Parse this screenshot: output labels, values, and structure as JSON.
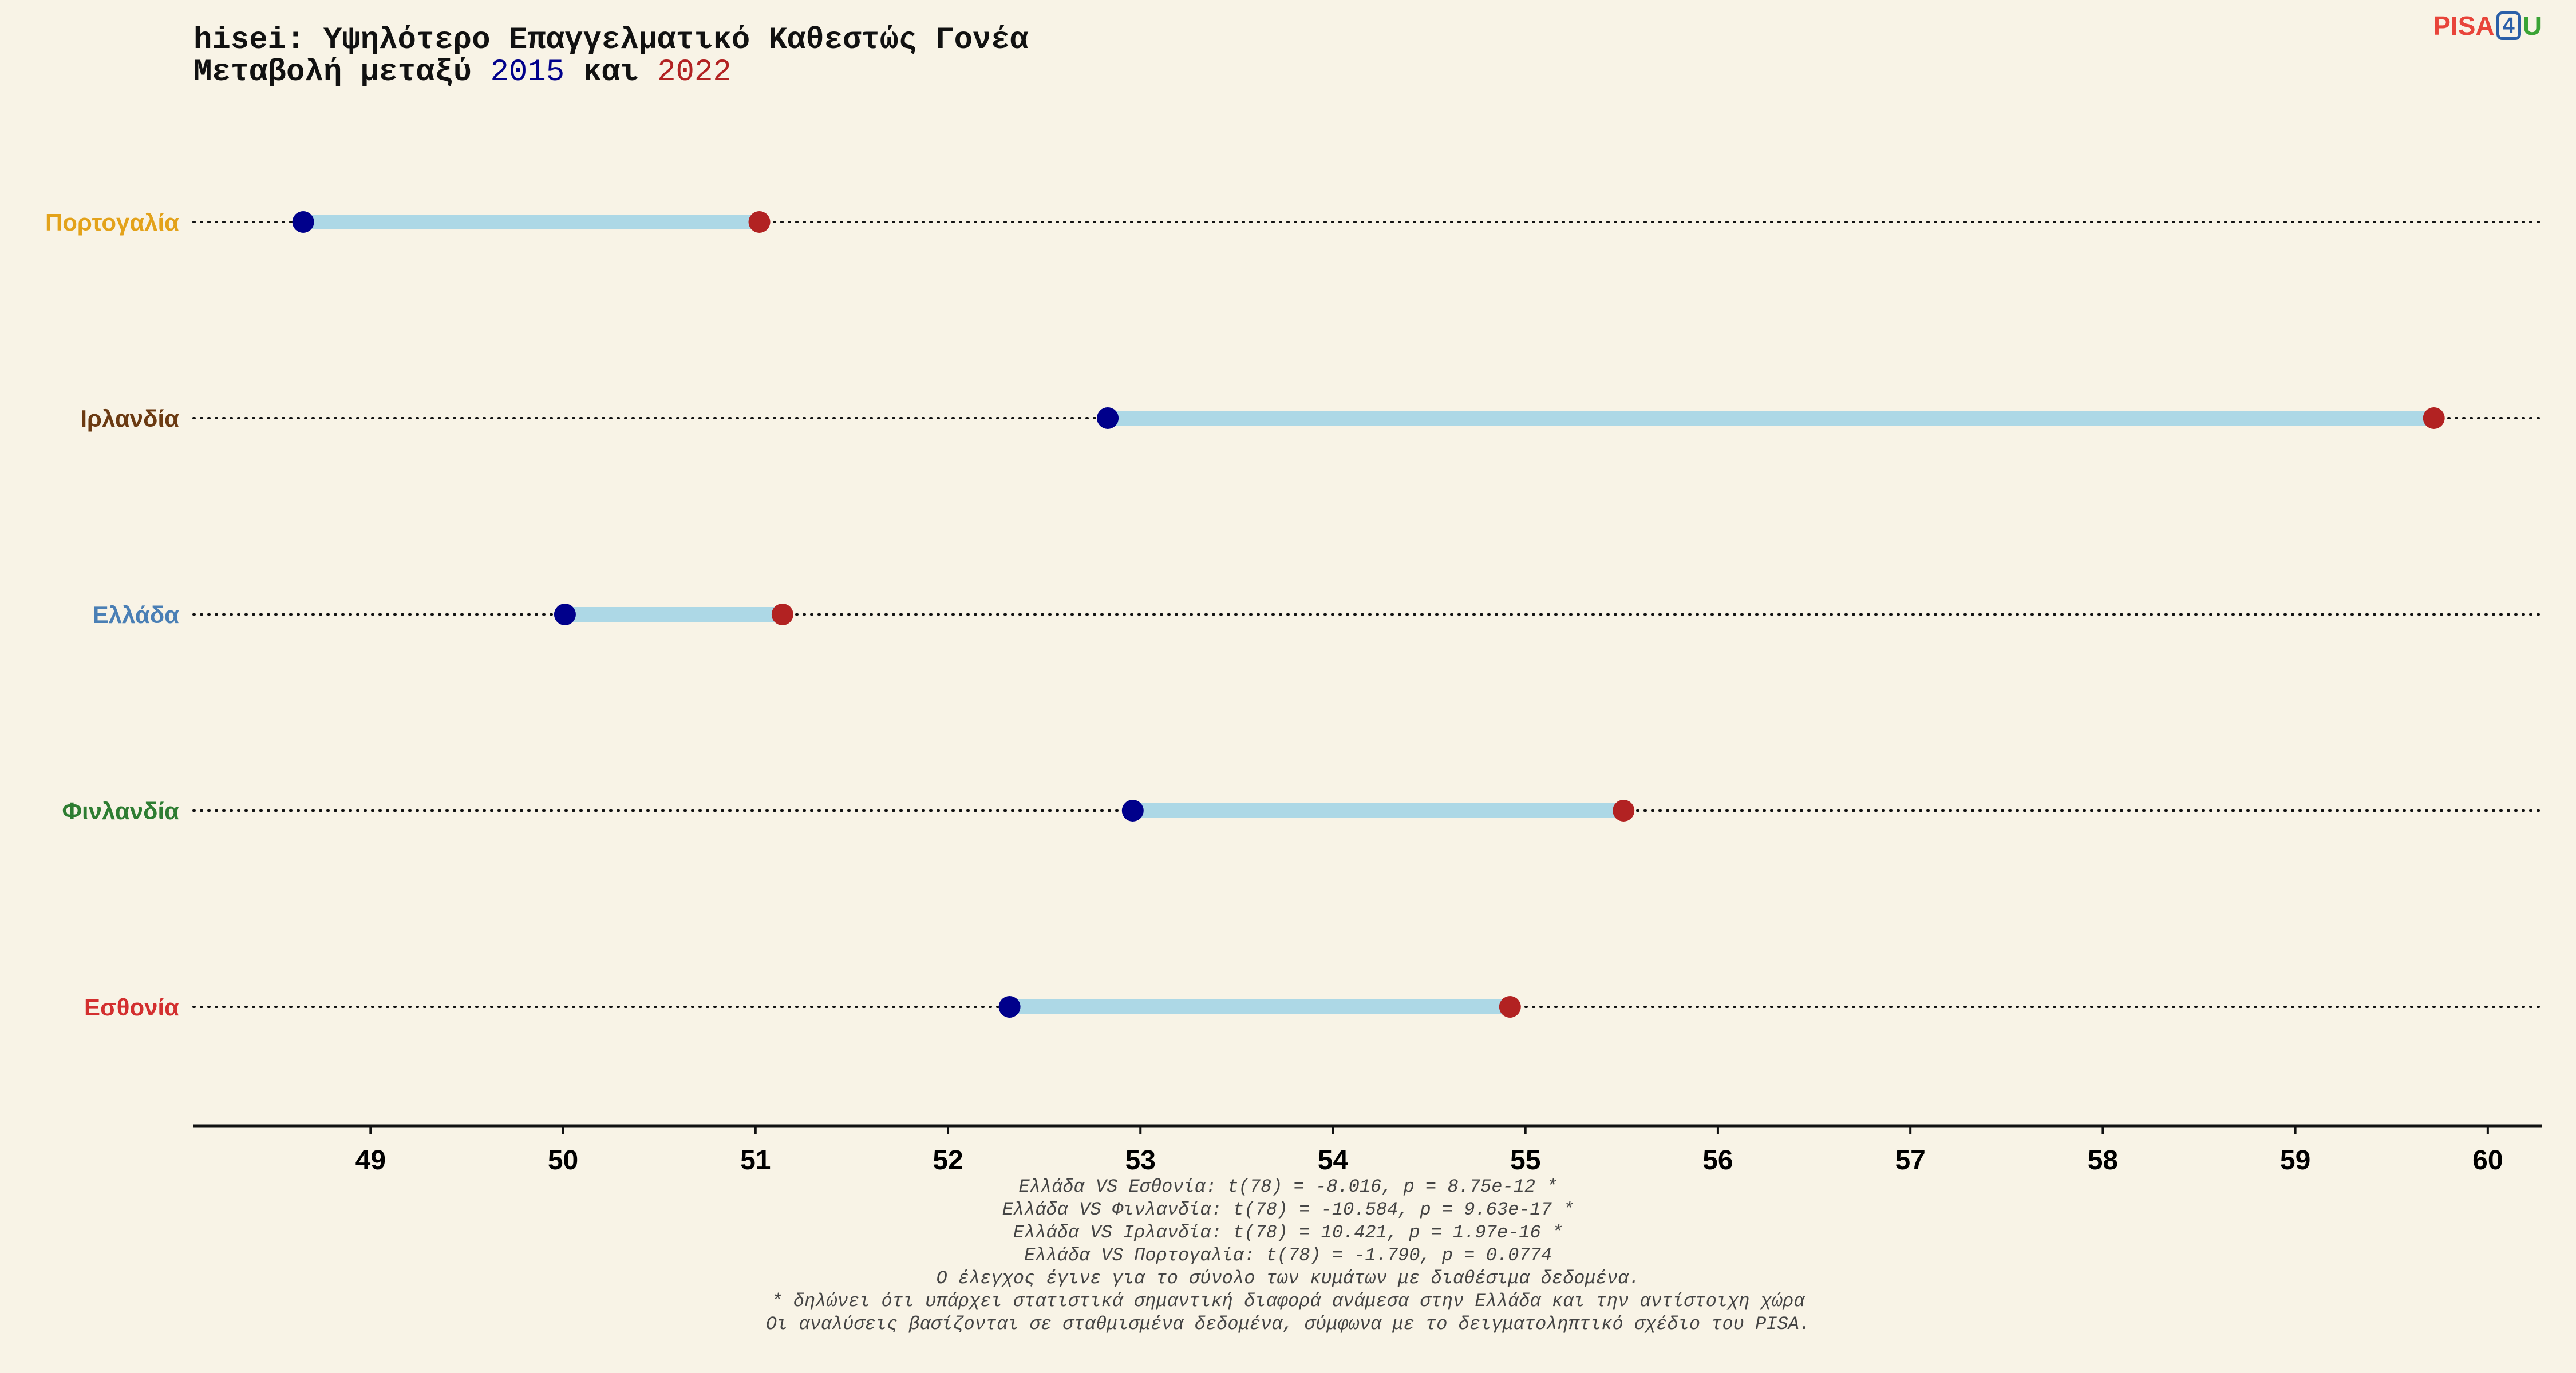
{
  "title": {
    "line1": "hisei: Υψηλότερο Επαγγελματικό Καθεστώς Γονέα",
    "line2_prefix": "Μεταβολή μεταξύ ",
    "year_a": "2015",
    "line2_middle": " και ",
    "year_b": "2022"
  },
  "logo": {
    "pisa": "PISA",
    "four": "4",
    "u": "U"
  },
  "colors": {
    "background": "#f8f3e6",
    "dot_2015": "#00008b",
    "dot_2022": "#b22222",
    "segment": "#add8e6"
  },
  "chart_data": {
    "type": "dumbbell",
    "series": [
      {
        "name": "2015",
        "color": "#00008b"
      },
      {
        "name": "2022",
        "color": "#b22222"
      }
    ],
    "rows": [
      {
        "country": "Πορτογαλία",
        "color": "#e3a21a",
        "v2015": 48.65,
        "v2022": 51.02
      },
      {
        "country": "Ιρλανδία",
        "color": "#6b3a12",
        "v2015": 52.83,
        "v2022": 59.72
      },
      {
        "country": "Ελλάδα",
        "color": "#4a7fb5",
        "v2015": 50.01,
        "v2022": 51.14
      },
      {
        "country": "Φινλανδία",
        "color": "#2e7d32",
        "v2015": 52.96,
        "v2022": 55.51
      },
      {
        "country": "Εσθονία",
        "color": "#d32f2f",
        "v2015": 52.32,
        "v2022": 54.92
      }
    ],
    "xticks": [
      49,
      50,
      51,
      52,
      53,
      54,
      55,
      56,
      57,
      58,
      59,
      60
    ],
    "xlim": [
      48.08,
      60.28
    ],
    "grid": "dotted row guides"
  },
  "notes": [
    "Ελλάδα VS Εσθονία: t(78) = -8.016, p = 8.75e-12 *",
    "Ελλάδα VS Φινλανδία: t(78) = -10.584, p = 9.63e-17 *",
    "Ελλάδα VS Ιρλανδία: t(78) = 10.421, p = 1.97e-16 *",
    "Ελλάδα VS Πορτογαλία: t(78) = -1.790, p = 0.0774",
    "Ο έλεγχος έγινε για το σύνολο των κυμάτων με διαθέσιμα δεδομένα.",
    "* δηλώνει ότι υπάρχει στατιστικά σημαντική διαφορά ανάμεσα στην Ελλάδα και την αντίστοιχη χώρα",
    "Οι αναλύσεις βασίζονται σε σταθμισμένα δεδομένα, σύμφωνα με το δειγματοληπτικό σχέδιο του PISA."
  ]
}
